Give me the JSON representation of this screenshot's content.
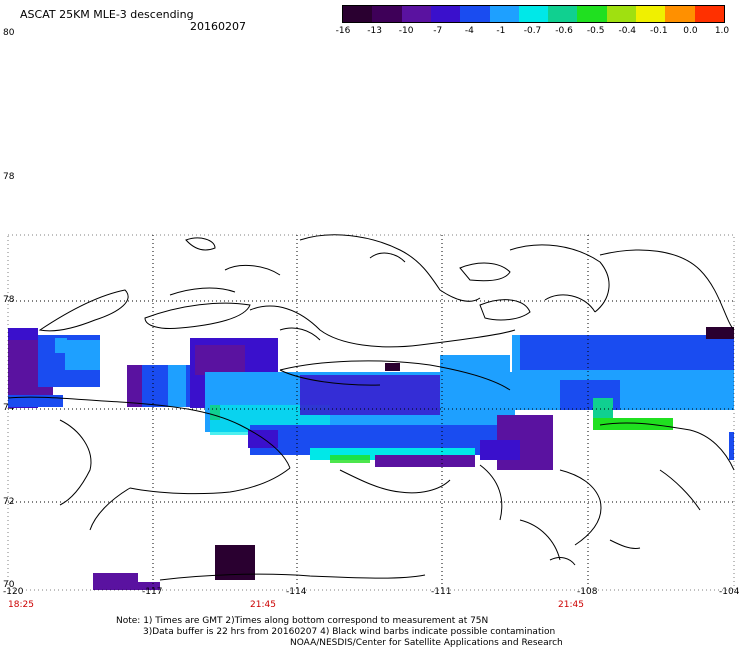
{
  "header": {
    "title": "ASCAT 25KM MLE-3 descending",
    "date": "20160207"
  },
  "colorbar": {
    "colors": [
      "#2a0030",
      "#3e0058",
      "#5a12a0",
      "#3a10cc",
      "#1a4cf0",
      "#1ea0ff",
      "#00e8e8",
      "#10d090",
      "#20e020",
      "#a0e010",
      "#f0f000",
      "#ff9000",
      "#ff3000"
    ],
    "ticks": [
      "-16",
      "-13",
      "-10",
      "-7",
      "-4",
      "-1",
      "-0.7",
      "-0.6",
      "-0.5",
      "-0.4",
      "-0.1",
      "0.0",
      "1.0"
    ]
  },
  "axes": {
    "lat_labels": [
      "80",
      "78",
      "78",
      "74",
      "72",
      "70"
    ],
    "lon_labels": [
      "-120",
      "-117",
      "-114",
      "-111",
      "-108",
      "-104"
    ],
    "time_labels": [
      "18:25",
      "21:45",
      "21:45"
    ]
  },
  "notes": {
    "line1": "Note: 1) Times are GMT 2)Times along bottom correspond to measurement at 75N",
    "line2": "3)Data buffer is 22 hrs from 20160207 4) Black wind barbs indicate possible contamination",
    "line3": "NOAA/NESDIS/Center for Satellite Applications and Research"
  }
}
